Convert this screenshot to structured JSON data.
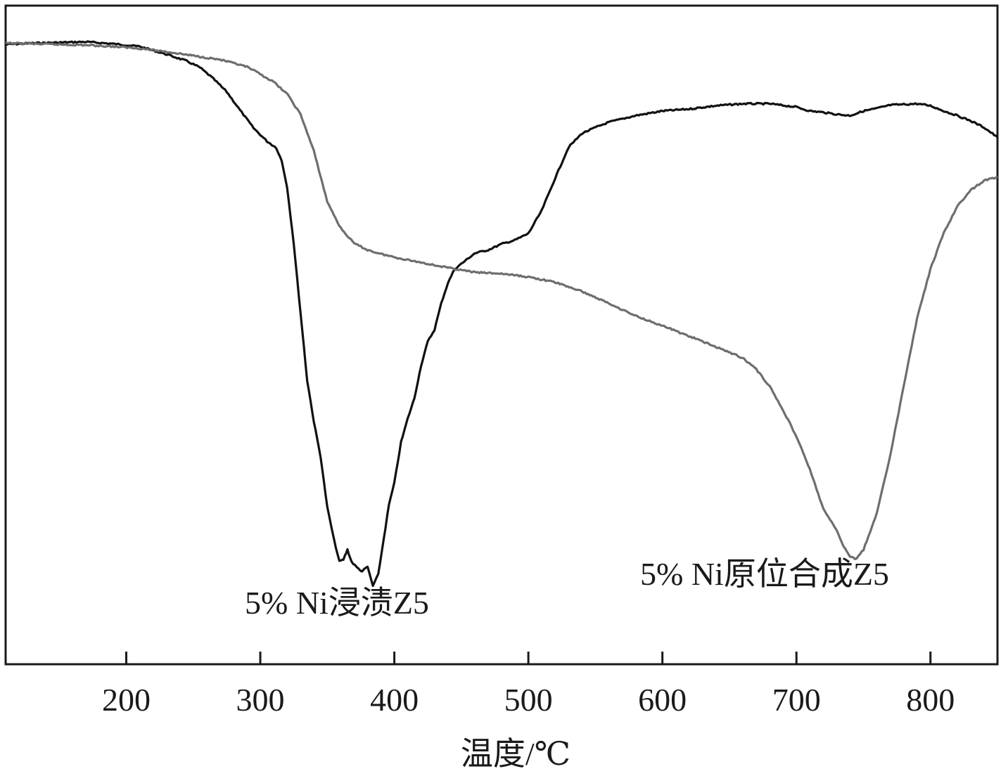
{
  "chart_data": {
    "type": "line",
    "xlabel": "温度/℃",
    "ylabel": "",
    "xlim": [
      110,
      850
    ],
    "ylim": [
      0,
      100
    ],
    "x_ticks": [
      200,
      300,
      400,
      500,
      600,
      700,
      800
    ],
    "y_ticks": [],
    "grid": false,
    "legend": "none",
    "series": [
      {
        "name": "5% Ni浸渍Z5",
        "color": "#111111",
        "points": [
          [
            110,
            94.1
          ],
          [
            130,
            94.3
          ],
          [
            150,
            94.4
          ],
          [
            170,
            94.5
          ],
          [
            190,
            94.2
          ],
          [
            210,
            93.8
          ],
          [
            230,
            92.6
          ],
          [
            245,
            91.6
          ],
          [
            255,
            90.6
          ],
          [
            265,
            88.9
          ],
          [
            275,
            86.9
          ],
          [
            285,
            84.1
          ],
          [
            295,
            81.4
          ],
          [
            305,
            79.4
          ],
          [
            312,
            78.4
          ],
          [
            316,
            76.4
          ],
          [
            320,
            72.5
          ],
          [
            325,
            63.8
          ],
          [
            330,
            53.4
          ],
          [
            335,
            43.1
          ],
          [
            340,
            36.8
          ],
          [
            345,
            31.5
          ],
          [
            350,
            23.8
          ],
          [
            355,
            18.9
          ],
          [
            359,
            15.6
          ],
          [
            362,
            15.9
          ],
          [
            365,
            17.4
          ],
          [
            368,
            15.6
          ],
          [
            372,
            14.7
          ],
          [
            376,
            14.1
          ],
          [
            380,
            14.8
          ],
          [
            384,
            11.9
          ],
          [
            388,
            13.6
          ],
          [
            392,
            18.9
          ],
          [
            396,
            24.2
          ],
          [
            400,
            27.5
          ],
          [
            405,
            33.7
          ],
          [
            410,
            37.3
          ],
          [
            415,
            40.4
          ],
          [
            420,
            45.4
          ],
          [
            425,
            49.0
          ],
          [
            430,
            50.8
          ],
          [
            435,
            54.8
          ],
          [
            440,
            57.9
          ],
          [
            445,
            60.0
          ],
          [
            450,
            60.8
          ],
          [
            455,
            61.6
          ],
          [
            460,
            62.4
          ],
          [
            470,
            62.9
          ],
          [
            480,
            63.8
          ],
          [
            490,
            64.4
          ],
          [
            500,
            65.4
          ],
          [
            510,
            68.9
          ],
          [
            520,
            73.8
          ],
          [
            530,
            78.5
          ],
          [
            540,
            80.6
          ],
          [
            550,
            81.5
          ],
          [
            560,
            82.3
          ],
          [
            580,
            83.3
          ],
          [
            600,
            84.0
          ],
          [
            620,
            84.3
          ],
          [
            640,
            84.8
          ],
          [
            660,
            85.1
          ],
          [
            680,
            85.1
          ],
          [
            700,
            84.6
          ],
          [
            710,
            84.0
          ],
          [
            720,
            83.8
          ],
          [
            730,
            83.5
          ],
          [
            740,
            83.3
          ],
          [
            750,
            84.0
          ],
          [
            760,
            84.4
          ],
          [
            770,
            84.9
          ],
          [
            780,
            85.0
          ],
          [
            790,
            85.1
          ],
          [
            800,
            84.8
          ],
          [
            810,
            84.0
          ],
          [
            820,
            83.3
          ],
          [
            830,
            82.5
          ],
          [
            840,
            81.5
          ],
          [
            850,
            80.0
          ]
        ]
      },
      {
        "name": "5% Ni原位合成Z5",
        "color": "#6e6e6e",
        "points": [
          [
            110,
            94.3
          ],
          [
            130,
            94.2
          ],
          [
            150,
            94.1
          ],
          [
            170,
            94.0
          ],
          [
            190,
            93.8
          ],
          [
            210,
            93.5
          ],
          [
            230,
            93.0
          ],
          [
            250,
            92.4
          ],
          [
            270,
            91.8
          ],
          [
            290,
            90.7
          ],
          [
            300,
            89.6
          ],
          [
            310,
            88.4
          ],
          [
            320,
            86.6
          ],
          [
            330,
            83.5
          ],
          [
            340,
            77.9
          ],
          [
            350,
            70.2
          ],
          [
            360,
            66.2
          ],
          [
            370,
            63.9
          ],
          [
            380,
            62.9
          ],
          [
            390,
            62.3
          ],
          [
            400,
            61.8
          ],
          [
            420,
            61.0
          ],
          [
            440,
            60.2
          ],
          [
            460,
            59.5
          ],
          [
            480,
            59.3
          ],
          [
            500,
            58.8
          ],
          [
            520,
            58.0
          ],
          [
            540,
            56.6
          ],
          [
            560,
            54.8
          ],
          [
            580,
            52.9
          ],
          [
            600,
            51.4
          ],
          [
            620,
            49.8
          ],
          [
            640,
            48.2
          ],
          [
            660,
            46.5
          ],
          [
            670,
            44.8
          ],
          [
            680,
            42.2
          ],
          [
            690,
            38.6
          ],
          [
            700,
            34.6
          ],
          [
            710,
            29.6
          ],
          [
            720,
            23.6
          ],
          [
            730,
            20.3
          ],
          [
            735,
            18.0
          ],
          [
            740,
            16.3
          ],
          [
            745,
            16.0
          ],
          [
            750,
            17.4
          ],
          [
            760,
            22.9
          ],
          [
            770,
            31.7
          ],
          [
            780,
            42.2
          ],
          [
            790,
            52.5
          ],
          [
            800,
            60.0
          ],
          [
            810,
            65.5
          ],
          [
            820,
            69.5
          ],
          [
            830,
            72.0
          ],
          [
            840,
            73.4
          ],
          [
            850,
            74.0
          ]
        ]
      }
    ]
  }
}
